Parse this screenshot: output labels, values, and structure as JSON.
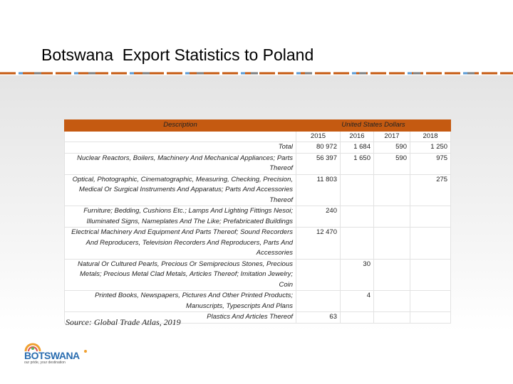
{
  "header": {
    "title": "Botswana  Export Statistics to Poland"
  },
  "table": {
    "header": {
      "description": "Description",
      "currency": "United States Dollars"
    },
    "years": [
      "2015",
      "2016",
      "2017",
      "2018"
    ],
    "rows": [
      {
        "description": "Total",
        "values": [
          "80 972",
          "1 684",
          "590",
          "1 250"
        ]
      },
      {
        "description": "Nuclear Reactors, Boilers, Machinery And Mechanical Appliances; Parts Thereof",
        "values": [
          "56 397",
          "1 650",
          "590",
          "975"
        ]
      },
      {
        "description": "Optical, Photographic, Cinematographic, Measuring, Checking, Precision, Medical Or Surgical Instruments And Apparatus; Parts And Accessories Thereof",
        "values": [
          "11 803",
          null,
          null,
          "275"
        ]
      },
      {
        "description": "Furniture; Bedding, Cushions Etc.; Lamps And Lighting Fittings Nesoi; Illuminated Signs, Nameplates And The Like; Prefabricated Buildings",
        "values": [
          "240",
          null,
          null,
          null
        ]
      },
      {
        "description": "Electrical Machinery And Equipment And Parts Thereof; Sound Recorders And Reproducers, Television Recorders And Reproducers, Parts And Accessories",
        "values": [
          "12 470",
          null,
          null,
          null
        ]
      },
      {
        "description": "Natural Or Cultured Pearls, Precious Or Semiprecious Stones, Precious Metals; Precious Metal Clad Metals, Articles Thereof; Imitation Jewelry; Coin",
        "values": [
          null,
          "30",
          null,
          null
        ]
      },
      {
        "description": "Printed Books, Newspapers, Pictures And Other Printed Products; Manuscripts, Typescripts And Plans",
        "values": [
          null,
          "4",
          null,
          null
        ]
      },
      {
        "description": "Plastics And Articles Thereof",
        "values": [
          "63",
          null,
          null,
          null
        ]
      }
    ]
  },
  "source": "Source: Global Trade Atlas, 2019",
  "logo": {
    "name": "BOTSWANA",
    "tagline": "our pride, your destination"
  }
}
